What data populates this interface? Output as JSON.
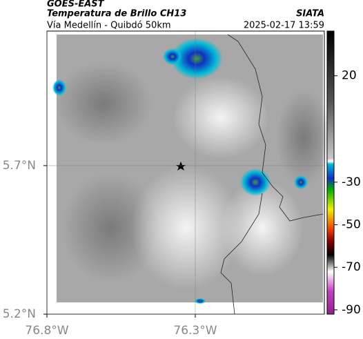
{
  "header": {
    "title": "GOES-EAST",
    "subtitle": "Temperatura de Brillo CH13",
    "source": "SIATA",
    "route": "Vía Medellín - Quibdó 50km",
    "datetime": "2025-02-17 13:59"
  },
  "map": {
    "xlim": [
      -76.8,
      -75.865
    ],
    "ylim": [
      5.2,
      6.153
    ],
    "xticks": [
      {
        "value": -76.8,
        "label": "76.8°W"
      },
      {
        "value": -76.3,
        "label": "76.3°W"
      }
    ],
    "yticks": [
      {
        "value": 5.2,
        "label": "5.2°N"
      },
      {
        "value": 5.7,
        "label": "5.7°N"
      }
    ],
    "grid": true
  },
  "colorbar": {
    "lim": [
      -92,
      41
    ],
    "ticks": [
      20,
      -30,
      -50,
      -70,
      -90
    ]
  }
}
